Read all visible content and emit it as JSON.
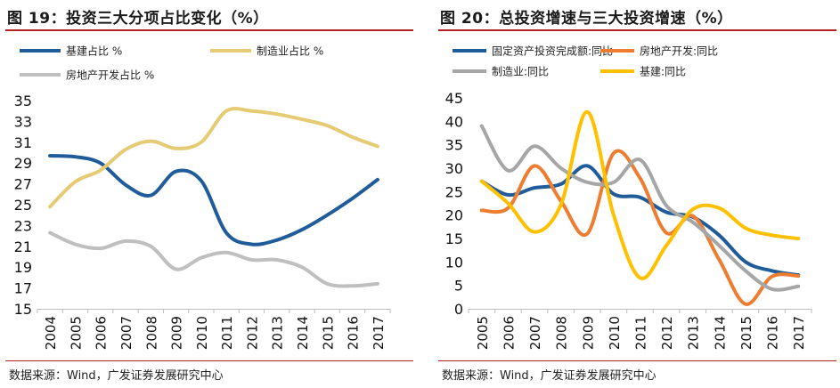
{
  "charts": [
    {
      "figure_title": "图 19：投资三大分项占比变化（%）",
      "source": "数据来源：Wind，广发证券发展研究中心",
      "chart_data": {
        "type": "line",
        "title": "投资三大分项占比变化（%）",
        "x": [
          "2004",
          "2005",
          "2006",
          "2007",
          "2008",
          "2009",
          "2010",
          "2011",
          "2012",
          "2013",
          "2014",
          "2015",
          "2016",
          "2017"
        ],
        "ylim": [
          15,
          35
        ],
        "yticks": [
          15,
          17,
          19,
          21,
          23,
          25,
          27,
          29,
          31,
          33,
          35
        ],
        "grid": false,
        "legend_placement": "top",
        "series": [
          {
            "name": "基建占比 %",
            "color": "#1f5c99",
            "values": [
              29.7,
              29.6,
              29.0,
              26.9,
              25.9,
              28.2,
              27.3,
              22.3,
              21.2,
              21.6,
              22.6,
              24.0,
              25.6,
              27.4
            ]
          },
          {
            "name": "制造业占比 %",
            "color": "#e5cb73",
            "values": [
              24.8,
              27.2,
              28.3,
              30.3,
              31.1,
              30.4,
              31.0,
              34.0,
              34.0,
              33.7,
              33.2,
              32.6,
              31.5,
              30.6
            ]
          },
          {
            "name": "房地产开发占比 %",
            "color": "#bfbfbf",
            "values": [
              22.3,
              21.2,
              20.8,
              21.5,
              21.0,
              18.8,
              19.9,
              20.4,
              19.7,
              19.7,
              19.0,
              17.4,
              17.2,
              17.4
            ]
          }
        ]
      }
    },
    {
      "figure_title": "图 20：总投资增速与三大投资增速（%）",
      "source": "数据来源：Wind，广发证券发展研究中心",
      "chart_data": {
        "type": "line",
        "title": "总投资增速与三大投资增速（%）",
        "x": [
          "2005",
          "2006",
          "2007",
          "2008",
          "2009",
          "2010",
          "2011",
          "2012",
          "2013",
          "2014",
          "2015",
          "2016",
          "2017"
        ],
        "ylim": [
          0,
          45
        ],
        "yticks": [
          0,
          5,
          10,
          15,
          20,
          25,
          30,
          35,
          40,
          45
        ],
        "grid": false,
        "legend_placement": "top",
        "series": [
          {
            "name": "固定资产投资完成额:同比",
            "color": "#1f5c99",
            "values": [
              27.2,
              24.3,
              25.8,
              26.6,
              30.5,
              24.5,
              23.8,
              20.6,
              19.6,
              15.7,
              10.0,
              8.1,
              7.2
            ]
          },
          {
            "name": "房地产开发:同比",
            "color": "#ed7d31",
            "values": [
              21.0,
              21.5,
              30.5,
              23.0,
              16.0,
              33.2,
              27.9,
              16.2,
              19.8,
              10.5,
              1.0,
              6.9,
              7.0
            ]
          },
          {
            "name": "制造业:同比",
            "color": "#a6a6a6",
            "values": [
              39.0,
              29.5,
              34.7,
              30.0,
              27.0,
              27.0,
              31.8,
              22.0,
              18.5,
              13.5,
              8.1,
              4.2,
              4.8
            ]
          },
          {
            "name": "基建:同比",
            "color": "#ffc000",
            "values": [
              27.2,
              22.5,
              16.4,
              22.2,
              42.0,
              20.0,
              6.6,
              13.5,
              21.2,
              21.5,
              17.2,
              15.7,
              15.0
            ]
          }
        ]
      }
    }
  ]
}
